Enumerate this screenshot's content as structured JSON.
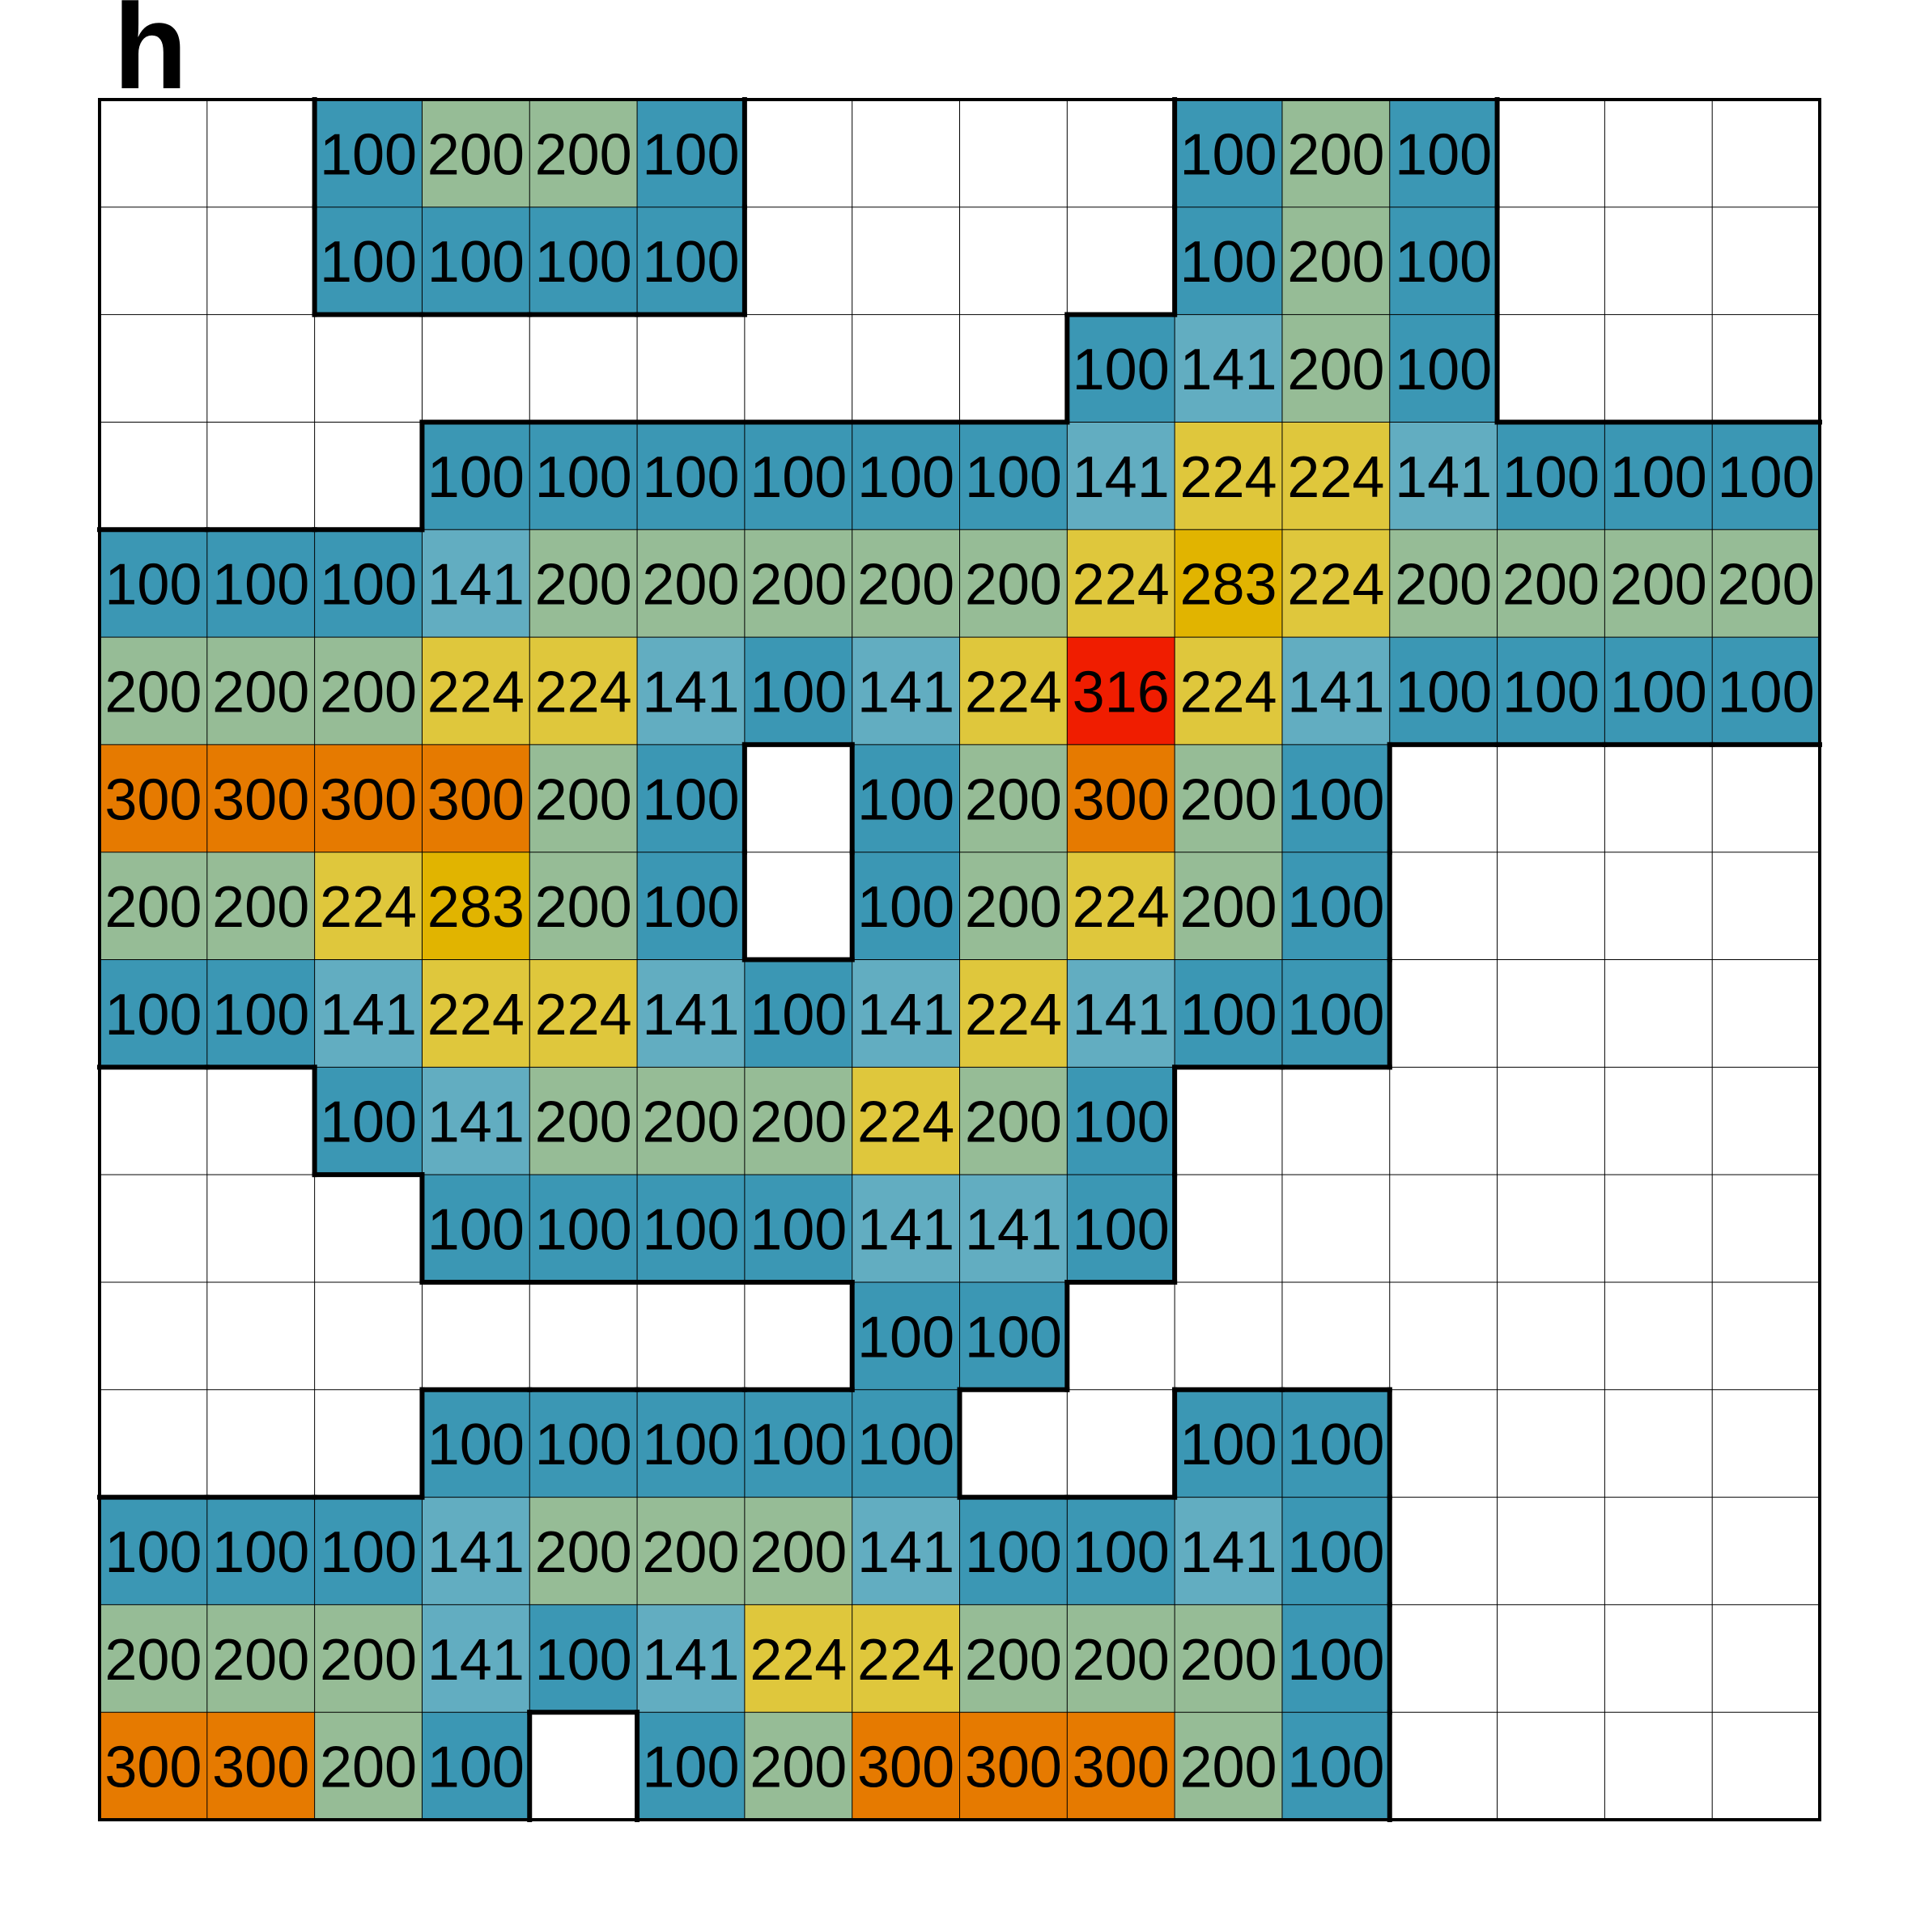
{
  "chart_data": {
    "type": "heatmap",
    "panel_label": "h",
    "rows": 16,
    "cols": 16,
    "values": [
      [
        null,
        null,
        100,
        200,
        200,
        100,
        null,
        null,
        null,
        null,
        100,
        200,
        100,
        null,
        null,
        null
      ],
      [
        null,
        null,
        100,
        100,
        100,
        100,
        null,
        null,
        null,
        null,
        100,
        200,
        100,
        null,
        null,
        null
      ],
      [
        null,
        null,
        null,
        null,
        null,
        null,
        null,
        null,
        null,
        100,
        141,
        200,
        100,
        null,
        null,
        null
      ],
      [
        null,
        null,
        null,
        100,
        100,
        100,
        100,
        100,
        100,
        141,
        224,
        224,
        141,
        100,
        100,
        100
      ],
      [
        100,
        100,
        100,
        141,
        200,
        200,
        200,
        200,
        200,
        224,
        283,
        224,
        200,
        200,
        200,
        200
      ],
      [
        200,
        200,
        200,
        224,
        224,
        141,
        100,
        141,
        224,
        316,
        224,
        141,
        100,
        100,
        100,
        100
      ],
      [
        300,
        300,
        300,
        300,
        200,
        100,
        null,
        100,
        200,
        300,
        200,
        100,
        null,
        null,
        null,
        null
      ],
      [
        200,
        200,
        224,
        283,
        200,
        100,
        null,
        100,
        200,
        224,
        200,
        100,
        null,
        null,
        null,
        null
      ],
      [
        100,
        100,
        141,
        224,
        224,
        141,
        100,
        141,
        224,
        141,
        100,
        100,
        null,
        null,
        null,
        null
      ],
      [
        null,
        null,
        100,
        141,
        200,
        200,
        200,
        224,
        200,
        100,
        null,
        null,
        null,
        null,
        null,
        null
      ],
      [
        null,
        null,
        null,
        100,
        100,
        100,
        100,
        141,
        141,
        100,
        null,
        null,
        null,
        null,
        null,
        null
      ],
      [
        null,
        null,
        null,
        null,
        null,
        null,
        null,
        100,
        100,
        null,
        null,
        null,
        null,
        null,
        null,
        null
      ],
      [
        null,
        null,
        null,
        100,
        100,
        100,
        100,
        100,
        null,
        null,
        100,
        100,
        null,
        null,
        null,
        null
      ],
      [
        100,
        100,
        100,
        141,
        200,
        200,
        200,
        141,
        100,
        100,
        141,
        100,
        null,
        null,
        null,
        null
      ],
      [
        200,
        200,
        200,
        141,
        100,
        141,
        224,
        224,
        200,
        200,
        200,
        100,
        null,
        null,
        null,
        null
      ],
      [
        300,
        300,
        200,
        100,
        null,
        100,
        200,
        300,
        300,
        300,
        200,
        100,
        null,
        null,
        null,
        null
      ]
    ],
    "color_map": {
      "100": "#3b97b4",
      "141": "#62adc1",
      "200": "#96bc96",
      "224": "#dfc73c",
      "283": "#e1b400",
      "300": "#e67a00",
      "316": "#f01d00"
    },
    "empty_color": "#ffffff",
    "grid": true
  }
}
